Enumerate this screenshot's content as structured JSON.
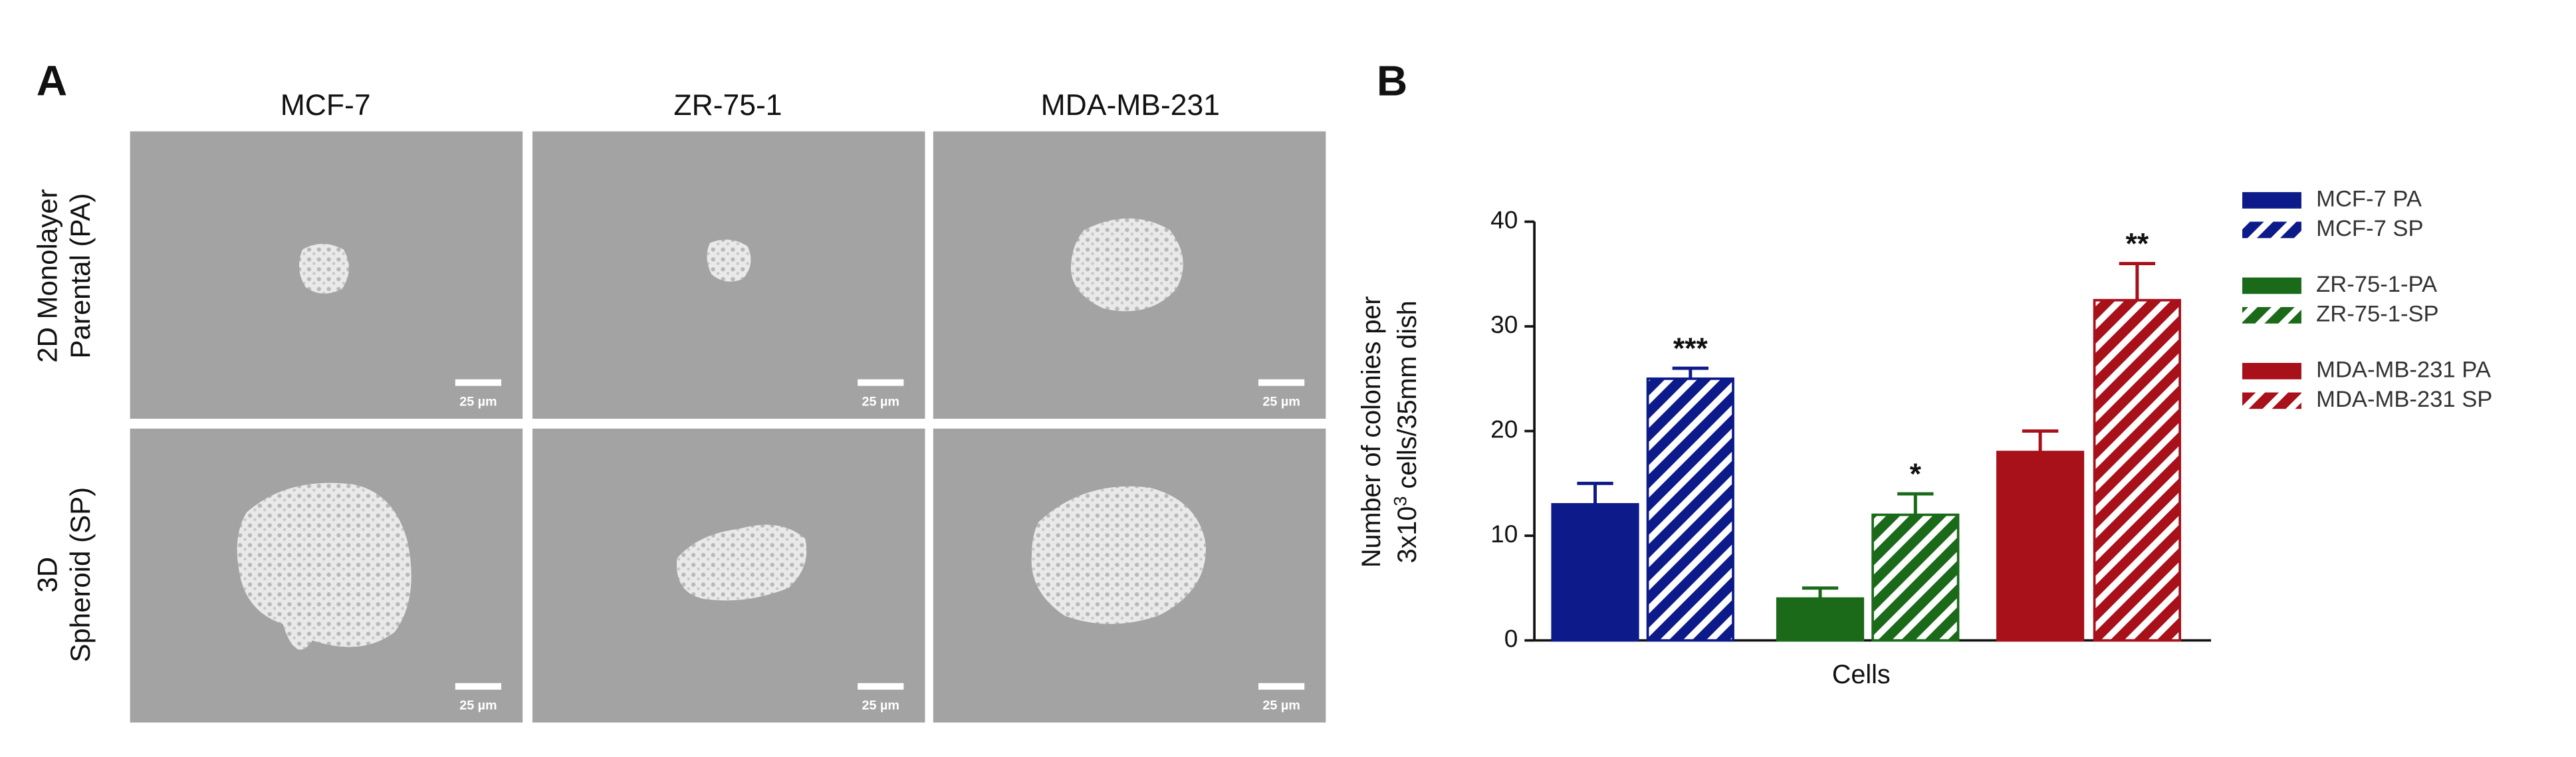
{
  "panel_a": {
    "label": "A",
    "columns": [
      "MCF-7",
      "ZR-75-1",
      "MDA-MB-231"
    ],
    "rows": [
      [
        "2D Monolayer",
        "Parental (PA)"
      ],
      [
        "3D",
        "Spheroid (SP)"
      ]
    ],
    "scale_bar_label": "25 µm"
  },
  "chart_data": {
    "type": "bar",
    "panel_label": "B",
    "x_label": "Cells",
    "y_label": {
      "line1": "Number of colonies per",
      "line2_base": "3x10",
      "line2_sup": "3",
      "line2_rest": " cells/35mm dish"
    },
    "categories": [
      null
    ],
    "ylim": [
      0,
      40
    ],
    "yticks": [
      0,
      10,
      20,
      30,
      40
    ],
    "series": [
      {
        "name": "MCF-7 PA",
        "color": "#0d1a8a",
        "hatched": false,
        "values": [
          13
        ],
        "errors": [
          2
        ]
      },
      {
        "name": "MCF-7 SP",
        "color": "#0d1a8a",
        "hatched": true,
        "values": [
          25
        ],
        "errors": [
          1
        ],
        "significance": "***"
      },
      {
        "name": "ZR-75-1-PA",
        "color": "#1a6a1a",
        "hatched": false,
        "values": [
          4
        ],
        "errors": [
          1
        ]
      },
      {
        "name": "ZR-75-1-SP",
        "color": "#1a6a1a",
        "hatched": true,
        "values": [
          12
        ],
        "errors": [
          2
        ],
        "significance": "*"
      },
      {
        "name": "MDA-MB-231 PA",
        "color": "#a8101a",
        "hatched": false,
        "values": [
          18
        ],
        "errors": [
          2
        ]
      },
      {
        "name": "MDA-MB-231 SP",
        "color": "#a8101a",
        "hatched": true,
        "values": [
          32.5
        ],
        "errors": [
          3.5
        ],
        "significance": "**"
      }
    ]
  }
}
